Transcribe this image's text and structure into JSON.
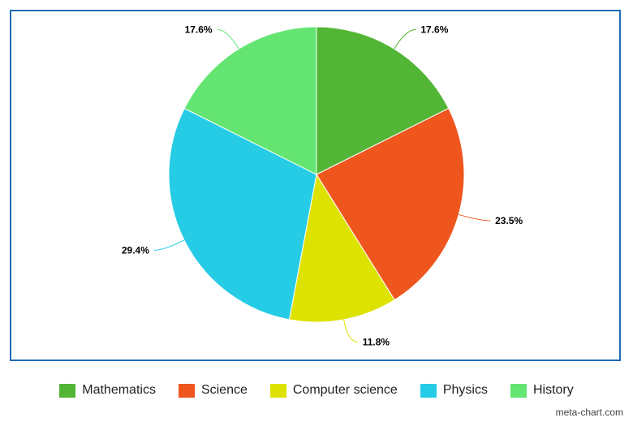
{
  "chart_data": {
    "type": "pie",
    "title": "",
    "slices": [
      {
        "label": "Mathematics",
        "value": 17.6,
        "value_label": "17.6%",
        "color": "#52b535"
      },
      {
        "label": "Science",
        "value": 23.5,
        "value_label": "23.5%",
        "color": "#ef561d"
      },
      {
        "label": "Computer science",
        "value": 11.8,
        "value_label": "11.8%",
        "color": "#dde200"
      },
      {
        "label": "Physics",
        "value": 29.4,
        "value_label": "29.4%",
        "color": "#26cce5"
      },
      {
        "label": "History",
        "value": 17.6,
        "value_label": "17.6%",
        "color": "#64e572"
      }
    ],
    "start_angle": "12 o'clock",
    "direction": "clockwise",
    "legend_position": "bottom",
    "border_color": "#1f6bb5"
  },
  "credit": "meta-chart.com"
}
